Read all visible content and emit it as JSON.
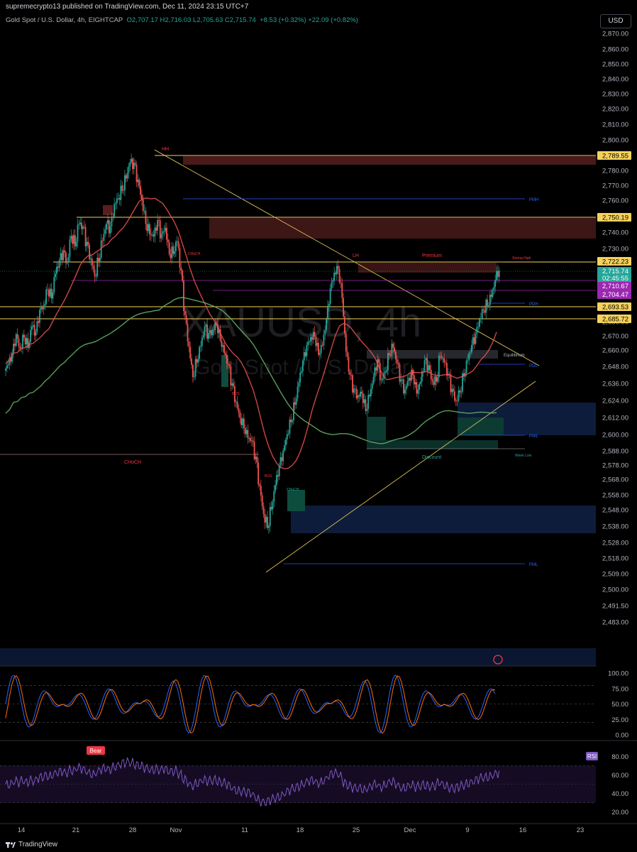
{
  "header": {
    "published": "supremecrypto13 published on TradingView.com, Dec 11, 2024 23:15 UTC+7",
    "symbol": "Gold Spot / U.S. Dollar, 4h, EIGHTCAP",
    "ohlc": "O2,707.17 H2,716.03 L2,705.63 C2,715.74",
    "change": "+8.53 (+0.32%) +22.09 (+0.82%)",
    "currency": "USD"
  },
  "watermark": {
    "line1": "XAUUSD, 4h",
    "line2": "Gold Spot / U.S. Dollar"
  },
  "chart_data": {
    "type": "candlestick",
    "symbol": "XAUUSD",
    "timeframe": "4h",
    "ylim": [
      2476,
      2876
    ],
    "y_ticks": [
      "2,870.00",
      "2,860.00",
      "2,850.00",
      "2,840.00",
      "2,830.00",
      "2,820.00",
      "2,810.00",
      "2,800.00",
      "2,790.00",
      "2,780.00",
      "2,770.00",
      "2,760.00",
      "2,750.00",
      "2,740.00",
      "2,730.00",
      "2,720.00",
      "2,710.00",
      "2,700.00",
      "2,690.00",
      "2,680.00",
      "2,670.00",
      "2,660.00",
      "2,648.00",
      "2,636.00",
      "2,624.00",
      "2,612.00",
      "2,600.00",
      "2,588.00",
      "2,578.00",
      "2,568.00",
      "2,558.00",
      "2,548.00",
      "2,538.00",
      "2,528.00",
      "2,518.00",
      "2,509.00",
      "2,500.00",
      "2,491.50",
      "2,483.00"
    ],
    "x_ticks": [
      "14",
      "21",
      "28",
      "Nov",
      "11",
      "18",
      "25",
      "Dec",
      "9",
      "16",
      "23"
    ],
    "close_path": [
      [
        2650,
        2655,
        2668,
        2660,
        2672,
        2665,
        2678,
        2670,
        2685,
        2690,
        2705,
        2700,
        2715,
        2720,
        2725,
        2718,
        2740,
        2735,
        2748,
        2742,
        2730,
        2720,
        2712,
        2725,
        2738,
        2745,
        2740,
        2755,
        2762,
        2770,
        2778,
        2786,
        2782,
        2770,
        2760,
        2748,
        2742,
        2738,
        2745,
        2735,
        2742,
        2728,
        2730,
        2736,
        2712,
        2680,
        2660,
        2642,
        2655,
        2665,
        2675,
        2668,
        2672,
        2680,
        2670,
        2660,
        2648,
        2632,
        2620,
        2612,
        2608,
        2600,
        2595,
        2580,
        2560,
        2545,
        2540,
        2552,
        2565,
        2575,
        2585,
        2600,
        2612,
        2625,
        2638,
        2650,
        2660,
        2668,
        2672,
        2660,
        2665,
        2680,
        2700,
        2712,
        2718,
        2700,
        2660,
        2640,
        2628,
        2625,
        2630,
        2620,
        2630,
        2640,
        2650,
        2635,
        2645,
        2660,
        2665,
        2650,
        2635,
        2628,
        2640,
        2645,
        2632,
        2638,
        2650,
        2645,
        2636,
        2640,
        2660,
        2652,
        2640,
        2628,
        2622,
        2632,
        2645,
        2655,
        2662,
        2668,
        2680,
        2690,
        2695,
        2700,
        2708,
        2715
      ]
    ],
    "levels": [
      {
        "label": "2,789.55",
        "value": 2789.55,
        "color": "#f5d25d"
      },
      {
        "label": "2,750.19",
        "value": 2750.19,
        "color": "#f5d25d"
      },
      {
        "label": "2,722.23",
        "value": 2722.23,
        "color": "#f5d25d"
      },
      {
        "label": "2,693.53",
        "value": 2693.53,
        "color": "#f5d25d"
      },
      {
        "label": "2,685.72",
        "value": 2685.72,
        "color": "#f5d25d"
      }
    ],
    "price_tags": [
      {
        "label": "2,715.74",
        "sub": "02:45:55",
        "value": 2715.74,
        "color": "#26a69a"
      },
      {
        "label": "2,710.67",
        "value": 2710.67,
        "color": "#9c27b0"
      },
      {
        "label": "2,704.47",
        "value": 2704.47,
        "color": "#9c27b0"
      }
    ],
    "annotations": [
      "HH",
      "LH",
      "Premium",
      "Strong High",
      "PMH",
      "PDH",
      "PDL",
      "PWL",
      "PML",
      "Equilibrium",
      "Discount",
      "Week Low",
      "CHoCH",
      "BOS"
    ],
    "stochastic": {
      "ylim": [
        0,
        100
      ],
      "ticks": [
        "100.00",
        "75.00",
        "50.00",
        "25.00",
        "0.00"
      ]
    },
    "rsi": {
      "ylim": [
        15,
        85
      ],
      "ticks": [
        "80.00",
        "60.00",
        "40.00",
        "20.00"
      ],
      "label": "RSI",
      "badge": "Bear"
    }
  },
  "footer": {
    "brand": "TradingView"
  }
}
